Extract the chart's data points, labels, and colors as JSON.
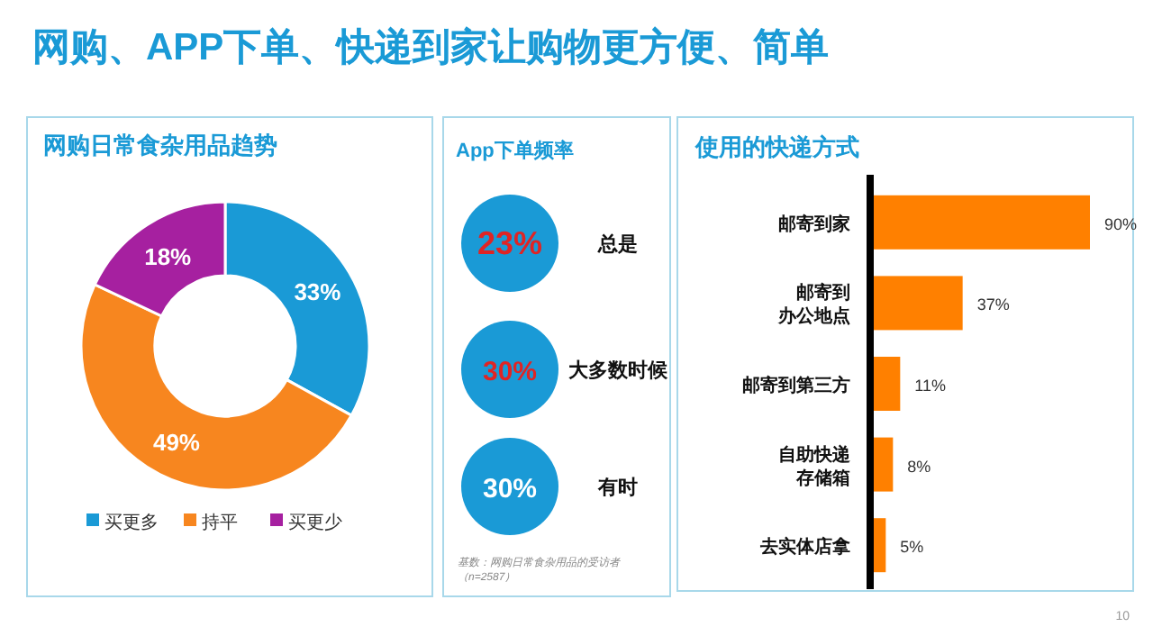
{
  "chart_data": [
    {
      "type": "donut",
      "title": "网购、APP下单、快递到家让购物更方便、简单",
      "subtitle": "网购日常食杂用品趋势",
      "categories": [
        "买更多",
        "持平",
        "买更少"
      ],
      "values": [
        33,
        49,
        18
      ],
      "colors": [
        "#1a9ad6",
        "#f7861f",
        "#a620a0"
      ],
      "value_labels": [
        "33%",
        "49%",
        "18%"
      ],
      "legend": "bottom"
    },
    {
      "type": "other",
      "title": "App下单频率",
      "categories": [
        "总是",
        "大多数时候",
        "有时"
      ],
      "values": [
        23,
        30,
        30
      ],
      "value_labels": [
        "23%",
        "30%",
        "30%"
      ],
      "colors": [
        "#1a9ad6",
        "#1a9ad6",
        "#1a9ad6"
      ],
      "annotations": [
        "基数：网购日常食杂用品的受访者（n=2587）"
      ]
    },
    {
      "type": "bar",
      "orientation": "horizontal",
      "title": "使用的快递方式",
      "categories": [
        "邮寄到家",
        "邮寄到办公地点",
        "邮寄到第三方",
        "自助快递存储箱",
        "去实体店拿"
      ],
      "values": [
        90,
        37,
        11,
        8,
        5
      ],
      "value_labels": [
        "90%",
        "37%",
        "11%",
        "8%",
        "5%"
      ],
      "color": "#ff8000",
      "annotations": [
        "10"
      ]
    }
  ]
}
